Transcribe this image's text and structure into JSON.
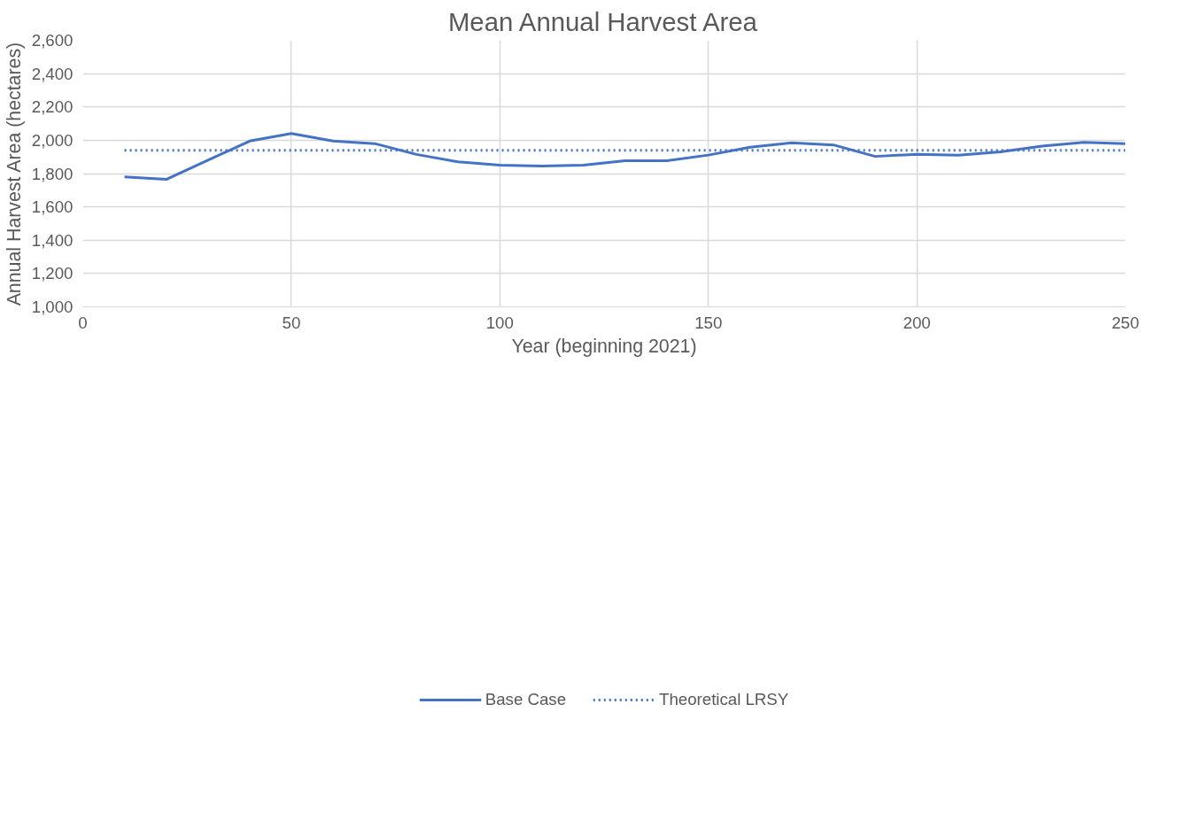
{
  "chart_data": {
    "type": "line",
    "title": "Mean Annual Harvest Area",
    "xlabel": "Year (beginning 2021)",
    "ylabel": "Annual Harvest Area (hectares)",
    "xlim": [
      0,
      250
    ],
    "xticks": [
      0,
      50,
      100,
      150,
      200,
      250
    ],
    "ylim": [
      1000,
      2600
    ],
    "yticks": [
      {
        "value": 1000,
        "label": "1,000"
      },
      {
        "value": 1200,
        "label": "1,200"
      },
      {
        "value": 1400,
        "label": "1,400"
      },
      {
        "value": 1600,
        "label": "1,600"
      },
      {
        "value": 1800,
        "label": "1,800"
      },
      {
        "value": 2000,
        "label": "2,000"
      },
      {
        "value": 2200,
        "label": "2,200"
      },
      {
        "value": 2400,
        "label": "2,400"
      },
      {
        "value": 2600,
        "label": "2,600"
      }
    ],
    "grid": true,
    "legend": "bottom",
    "marker": "none",
    "series": [
      {
        "name": "Base Case",
        "color": "#4472c4",
        "line_style": "solid",
        "x": [
          10,
          20,
          30,
          40,
          50,
          60,
          70,
          80,
          90,
          100,
          110,
          120,
          130,
          140,
          150,
          160,
          170,
          180,
          190,
          200,
          210,
          220,
          230,
          240,
          250
        ],
        "values": [
          1780,
          1765,
          1880,
          1995,
          2040,
          1995,
          1980,
          1915,
          1870,
          1850,
          1845,
          1850,
          1877,
          1877,
          1911,
          1958,
          1985,
          1972,
          1903,
          1916,
          1910,
          1930,
          1965,
          1987,
          1980
        ]
      },
      {
        "name": "Theoretical LRSY",
        "color": "#4472c4",
        "line_style": "dotted",
        "x": [
          10,
          250
        ],
        "values": [
          1940,
          1940
        ]
      }
    ]
  }
}
